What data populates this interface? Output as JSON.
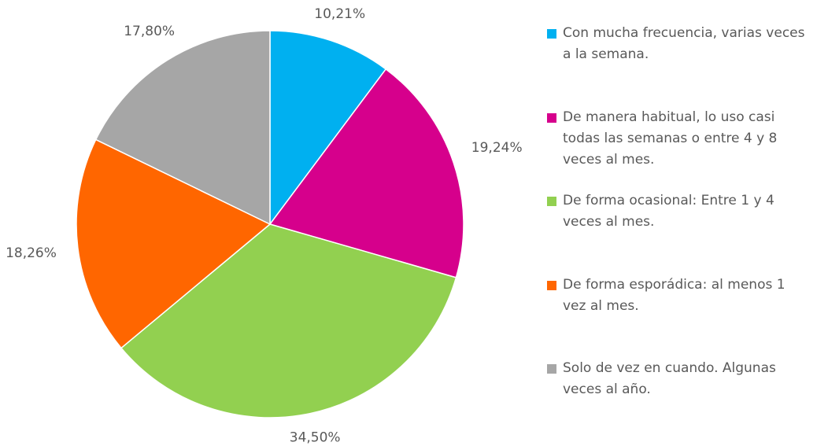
{
  "chart_data": {
    "type": "pie",
    "categories": [
      "Con mucha frecuencia, varias veces a la semana.",
      "De manera habitual, lo uso casi todas las semanas o entre 4 y 8 veces al mes.",
      "De forma ocasional: Entre 1 y 4 veces al mes.",
      "De forma esporádica: al menos 1 vez al mes.",
      "Solo de vez en cuando. Algunas veces al año."
    ],
    "values": [
      10.21,
      19.24,
      34.5,
      18.26,
      17.8
    ],
    "value_labels": [
      "10,21%",
      "19,24%",
      "34,50%",
      "18,26%",
      "17,80%"
    ],
    "colors": [
      "#00b0f0",
      "#d6008c",
      "#92d050",
      "#ff6600",
      "#a6a6a6"
    ],
    "legend": "right"
  }
}
